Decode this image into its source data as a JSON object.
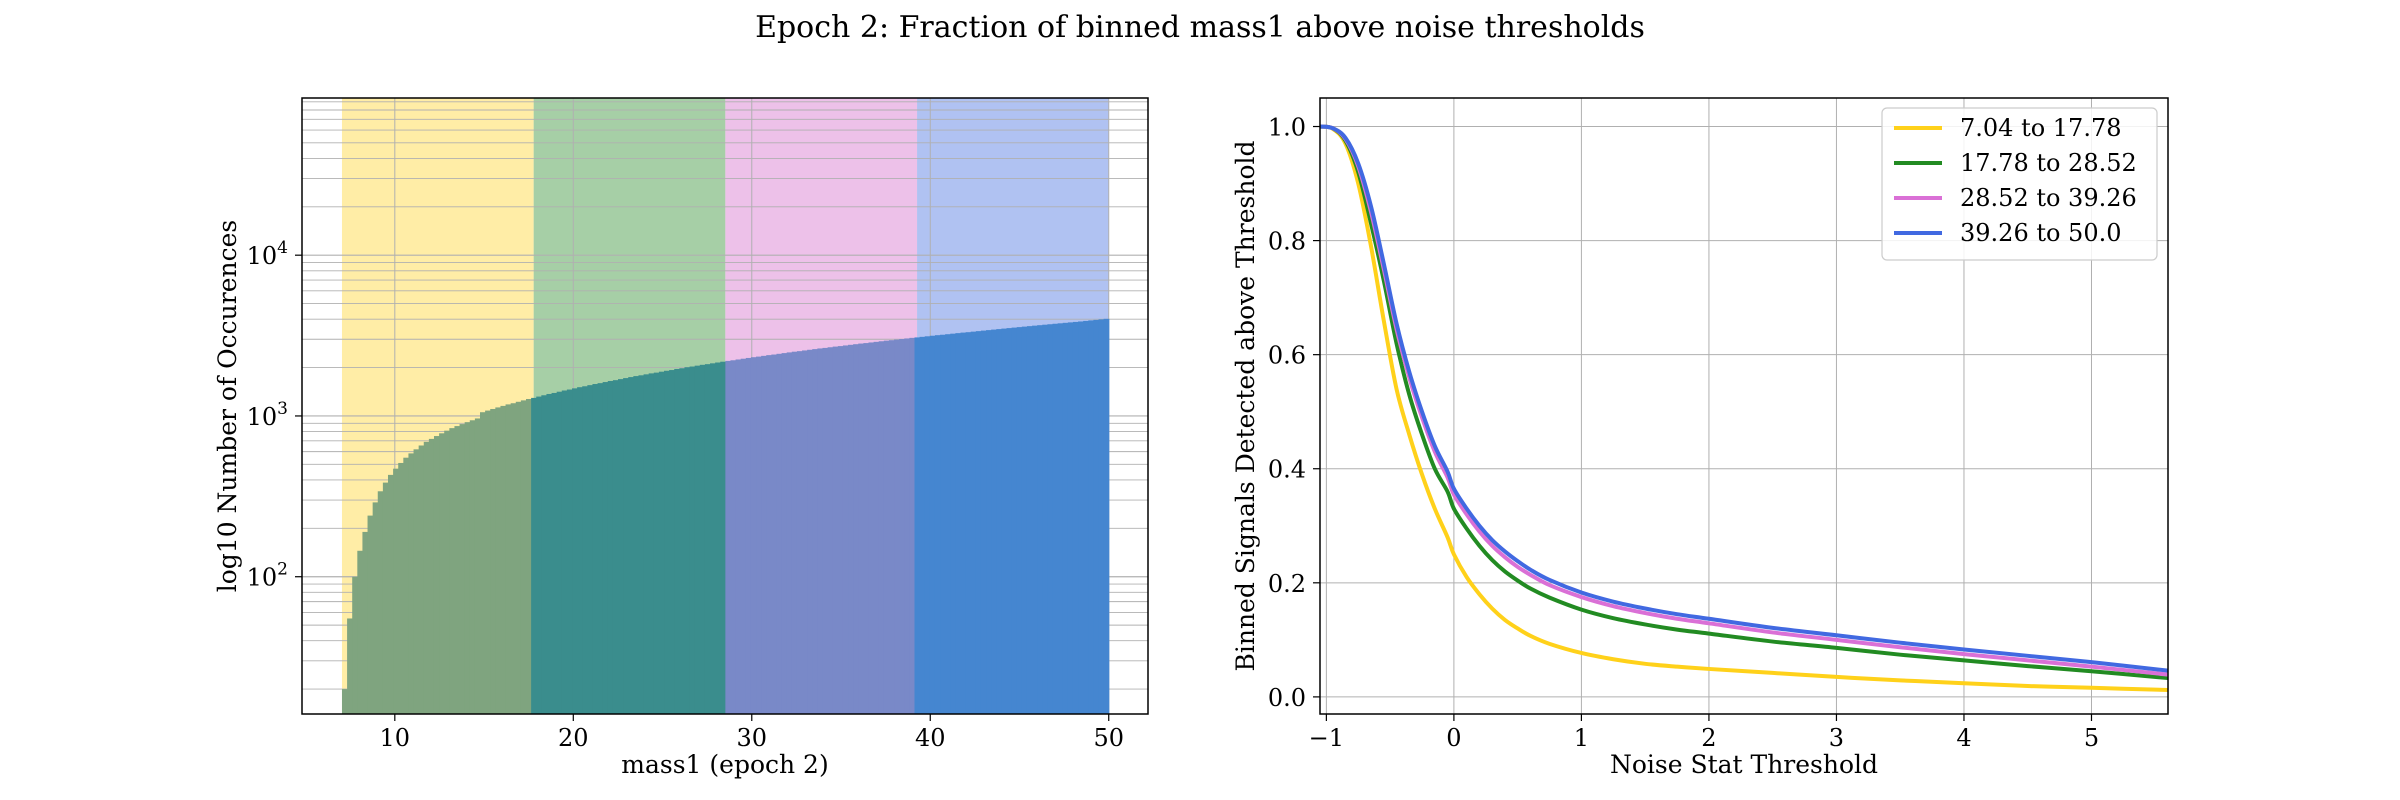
{
  "figure": {
    "title": "Epoch 2: Fraction of binned mass1 above noise thresholds"
  },
  "colors": {
    "band1": "#ffe680",
    "band2": "#80bb80",
    "band3": "#e6a6e0",
    "band4": "#8ea8ec",
    "line1": "#ffd11a",
    "line2": "#228b22",
    "line3": "#da70d6",
    "line4": "#4169e1",
    "bars_band1": "#7fa47f",
    "bars_band2": "#3a8d8d",
    "bars_band3": "#7989c8",
    "bars_band4": "#4586d0"
  },
  "chart_data": [
    {
      "type": "bar",
      "subtype": "histogram",
      "title": "",
      "xlabel": "mass1 (epoch 2)",
      "ylabel": "log10 Number of Occurences",
      "xlim": [
        4.8,
        52.2
      ],
      "ylim": [
        14,
        95000
      ],
      "y_scale": "log",
      "x_ticks": [
        10,
        20,
        30,
        40,
        50
      ],
      "y_ticks": [
        {
          "value": 100,
          "base": "10",
          "exp": "2"
        },
        {
          "value": 1000,
          "base": "10",
          "exp": "3"
        },
        {
          "value": 10000,
          "base": "10",
          "exp": "4"
        }
      ],
      "grid": true,
      "bands": [
        {
          "from": 7.04,
          "to": 17.78
        },
        {
          "from": 17.78,
          "to": 28.52
        },
        {
          "from": 28.52,
          "to": 39.26
        },
        {
          "from": 39.26,
          "to": 50.0
        }
      ],
      "bin_range": [
        7.04,
        50.0
      ],
      "counts": [
        20,
        55,
        100,
        145,
        190,
        240,
        290,
        340,
        385,
        430,
        470,
        510,
        550,
        585,
        620,
        655,
        690,
        720,
        750,
        780,
        810,
        840,
        865,
        890,
        915,
        940,
        965,
        1055,
        1080,
        1105,
        1130,
        1155,
        1180,
        1200,
        1225,
        1250,
        1275,
        1295,
        1320,
        1345,
        1370,
        1390,
        1415,
        1440,
        1460,
        1485,
        1510,
        1530,
        1555,
        1580,
        1600,
        1625,
        1650,
        1670,
        1695,
        1720,
        1745,
        1770,
        1790,
        1815,
        1840,
        1860,
        1885,
        1910,
        1930,
        1960,
        1980,
        2010,
        2030,
        2055,
        2080,
        2100,
        2125,
        2150,
        2175,
        2200,
        2220,
        2245,
        2270,
        2295,
        2320,
        2340,
        2365,
        2390,
        2410,
        2435,
        2460,
        2485,
        2510,
        2530,
        2555,
        2580,
        2605,
        2630,
        2650,
        2675,
        2700,
        2720,
        2745,
        2770,
        2795,
        2820,
        2840,
        2865,
        2890,
        2915,
        2940,
        2960,
        2985,
        3010,
        3035,
        3060,
        3080,
        3105,
        3130,
        3155,
        3180,
        3200,
        3225,
        3250,
        3275,
        3300,
        3320,
        3345,
        3370,
        3395,
        3420,
        3445,
        3470,
        3495,
        3520,
        3545,
        3570,
        3595,
        3620,
        3645,
        3670,
        3695,
        3720,
        3745,
        3770,
        3795,
        3820,
        3845,
        3870,
        3900,
        3930,
        3960,
        3990,
        4020
      ]
    },
    {
      "type": "line",
      "title": "",
      "xlabel": "Noise Stat Threshold",
      "ylabel": "Binned Signals Detected above Threshold",
      "xlim": [
        -1.05,
        5.6
      ],
      "ylim": [
        -0.03,
        1.05
      ],
      "x_ticks": [
        -1,
        0,
        1,
        2,
        3,
        4,
        5
      ],
      "x_tick_labels": [
        "−1",
        "0",
        "1",
        "2",
        "3",
        "4",
        "5"
      ],
      "y_ticks": [
        0.0,
        0.2,
        0.4,
        0.6,
        0.8,
        1.0
      ],
      "y_tick_labels": [
        "0.0",
        "0.2",
        "0.4",
        "0.6",
        "0.8",
        "1.0"
      ],
      "grid": true,
      "legend_position": "top-right",
      "x": [
        -1.05,
        -0.95,
        -0.85,
        -0.75,
        -0.65,
        -0.55,
        -0.45,
        -0.35,
        -0.25,
        -0.15,
        -0.05,
        0.0,
        0.1,
        0.2,
        0.3,
        0.4,
        0.5,
        0.6,
        0.75,
        1.0,
        1.25,
        1.5,
        1.75,
        2.0,
        2.5,
        3.0,
        3.5,
        4.0,
        4.5,
        5.0,
        5.6
      ],
      "series": [
        {
          "name": "7.04 to 17.78",
          "values": [
            1.0,
            0.996,
            0.97,
            0.9,
            0.79,
            0.66,
            0.54,
            0.46,
            0.39,
            0.33,
            0.28,
            0.25,
            0.21,
            0.18,
            0.155,
            0.135,
            0.12,
            0.107,
            0.093,
            0.077,
            0.066,
            0.058,
            0.053,
            0.049,
            0.042,
            0.035,
            0.029,
            0.024,
            0.019,
            0.016,
            0.012
          ]
        },
        {
          "name": "17.78 to 28.52",
          "values": [
            1.0,
            0.997,
            0.975,
            0.92,
            0.83,
            0.73,
            0.62,
            0.53,
            0.46,
            0.4,
            0.36,
            0.33,
            0.295,
            0.265,
            0.24,
            0.22,
            0.204,
            0.19,
            0.174,
            0.153,
            0.138,
            0.127,
            0.118,
            0.111,
            0.097,
            0.086,
            0.074,
            0.064,
            0.054,
            0.045,
            0.033
          ]
        },
        {
          "name": "28.52 to 39.26",
          "values": [
            1.0,
            0.997,
            0.978,
            0.93,
            0.85,
            0.75,
            0.645,
            0.56,
            0.49,
            0.43,
            0.385,
            0.355,
            0.32,
            0.29,
            0.265,
            0.245,
            0.228,
            0.214,
            0.196,
            0.175,
            0.159,
            0.147,
            0.137,
            0.129,
            0.113,
            0.1,
            0.087,
            0.075,
            0.064,
            0.053,
            0.039
          ]
        },
        {
          "name": "39.26 to 50.0",
          "values": [
            1.0,
            0.997,
            0.98,
            0.935,
            0.86,
            0.76,
            0.655,
            0.57,
            0.5,
            0.44,
            0.395,
            0.365,
            0.33,
            0.3,
            0.275,
            0.255,
            0.238,
            0.223,
            0.205,
            0.183,
            0.167,
            0.155,
            0.145,
            0.137,
            0.121,
            0.108,
            0.095,
            0.083,
            0.072,
            0.061,
            0.046
          ]
        }
      ]
    }
  ]
}
